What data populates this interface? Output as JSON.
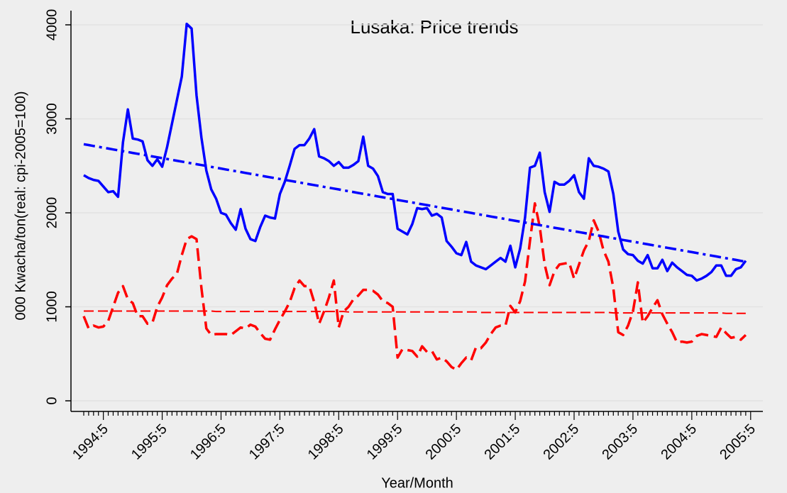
{
  "chart_data": {
    "type": "line",
    "title": "Lusaka: Price trends",
    "x_label": "Year/Month",
    "y_label": "000 Kwacha/ton(real: cpi-2005=100)",
    "categories": [
      null,
      null,
      null,
      null,
      "1994:5",
      null,
      null,
      null,
      null,
      null,
      null,
      null,
      null,
      null,
      null,
      null,
      "1995:5",
      null,
      null,
      null,
      null,
      null,
      null,
      null,
      null,
      null,
      null,
      null,
      "1996:5",
      null,
      null,
      null,
      null,
      null,
      null,
      null,
      null,
      null,
      null,
      null,
      "1997:5",
      null,
      null,
      null,
      null,
      null,
      null,
      null,
      null,
      null,
      null,
      null,
      "1998:5",
      null,
      null,
      null,
      null,
      null,
      null,
      null,
      null,
      null,
      null,
      null,
      "1999:5",
      null,
      null,
      null,
      null,
      null,
      null,
      null,
      null,
      null,
      null,
      null,
      "2000:5",
      null,
      null,
      null,
      null,
      null,
      null,
      null,
      null,
      null,
      null,
      null,
      "2001:5",
      null,
      null,
      null,
      null,
      null,
      null,
      null,
      null,
      null,
      null,
      null,
      "2002:5",
      null,
      null,
      null,
      null,
      null,
      null,
      null,
      null,
      null,
      null,
      null,
      "2003:5",
      null,
      null,
      null,
      null,
      null,
      null,
      null,
      null,
      null,
      null,
      null,
      "2004:5",
      null,
      null,
      null,
      null,
      null,
      null,
      null,
      null,
      null,
      null,
      null,
      "2005:5"
    ],
    "ylim": [
      -113,
      4151
    ],
    "yticks": [
      0,
      1000,
      2000,
      3000,
      4000
    ],
    "grid": true,
    "series": [
      {
        "color": "#0000ff",
        "style": "solid",
        "values": [
          2400,
          2370,
          2350,
          2340,
          2280,
          2220,
          2230,
          2170,
          2750,
          3100,
          2790,
          2780,
          2760,
          2560,
          2500,
          2570,
          2490,
          2700,
          2950,
          3200,
          3450,
          4010,
          3960,
          3250,
          2800,
          2450,
          2250,
          2150,
          2000,
          1980,
          1890,
          1820,
          2040,
          1830,
          1720,
          1700,
          1850,
          1970,
          1950,
          1940,
          2200,
          2330,
          2500,
          2680,
          2720,
          2720,
          2790,
          2890,
          2600,
          2580,
          2550,
          2500,
          2540,
          2480,
          2480,
          2510,
          2550,
          2810,
          2500,
          2470,
          2390,
          2220,
          2200,
          2200,
          1830,
          1800,
          1770,
          1880,
          2050,
          2040,
          2050,
          1970,
          1990,
          1950,
          1700,
          1640,
          1570,
          1550,
          1690,
          1480,
          1440,
          1420,
          1400,
          1440,
          1480,
          1520,
          1480,
          1650,
          1420,
          1620,
          1950,
          2480,
          2500,
          2640,
          2220,
          2010,
          2330,
          2300,
          2300,
          2340,
          2400,
          2220,
          2150,
          2580,
          2500,
          2490,
          2470,
          2440,
          2200,
          1800,
          1610,
          1560,
          1550,
          1490,
          1460,
          1550,
          1410,
          1410,
          1500,
          1380,
          1470,
          1420,
          1380,
          1340,
          1330,
          1280,
          1300,
          1330,
          1370,
          1440,
          1440,
          1330,
          1330,
          1400,
          1420,
          1490,
          null
        ]
      },
      {
        "color": "#ff0000",
        "style": "dashed",
        "values": [
          900,
          770,
          800,
          780,
          790,
          850,
          1000,
          1150,
          1220,
          1080,
          1040,
          900,
          900,
          820,
          830,
          1000,
          1100,
          1230,
          1300,
          1350,
          1550,
          1720,
          1750,
          1720,
          1200,
          770,
          700,
          710,
          710,
          710,
          700,
          740,
          780,
          770,
          810,
          790,
          720,
          660,
          650,
          760,
          860,
          950,
          1050,
          1200,
          1280,
          1220,
          1220,
          1050,
          820,
          950,
          1100,
          1280,
          780,
          950,
          1000,
          1080,
          1120,
          1180,
          1180,
          1170,
          1130,
          1060,
          1040,
          1000,
          460,
          550,
          540,
          530,
          470,
          580,
          520,
          530,
          440,
          460,
          420,
          360,
          330,
          400,
          460,
          430,
          570,
          560,
          620,
          710,
          780,
          800,
          800,
          1010,
          940,
          1060,
          1270,
          1700,
          2100,
          1850,
          1450,
          1230,
          1380,
          1450,
          1460,
          1470,
          1300,
          1450,
          1600,
          1700,
          1920,
          1800,
          1600,
          1480,
          1200,
          730,
          700,
          800,
          950,
          1260,
          830,
          900,
          990,
          1070,
          920,
          820,
          730,
          620,
          630,
          620,
          630,
          690,
          710,
          700,
          690,
          680,
          780,
          720,
          670,
          680,
          650,
          700,
          null
        ]
      },
      {
        "color": "#0000ff",
        "style": "dashdot",
        "values": [
          2730,
          2721,
          2711,
          2702,
          2693,
          2684,
          2674,
          2665,
          2656,
          2647,
          2637,
          2628,
          2619,
          2610,
          2600,
          2591,
          2582,
          2573,
          2563,
          2554,
          2545,
          2536,
          2526,
          2517,
          2508,
          2499,
          2489,
          2480,
          2471,
          2461,
          2452,
          2443,
          2434,
          2424,
          2415,
          2406,
          2397,
          2387,
          2378,
          2369,
          2360,
          2350,
          2341,
          2332,
          2323,
          2313,
          2304,
          2295,
          2286,
          2276,
          2267,
          2258,
          2249,
          2239,
          2230,
          2221,
          2211,
          2202,
          2193,
          2184,
          2174,
          2165,
          2156,
          2147,
          2137,
          2128,
          2119,
          2110,
          2100,
          2091,
          2082,
          2073,
          2063,
          2054,
          2045,
          2036,
          2026,
          2017,
          2008,
          1999,
          1989,
          1980,
          1971,
          1961,
          1952,
          1943,
          1934,
          1924,
          1915,
          1906,
          1897,
          1887,
          1878,
          1869,
          1860,
          1850,
          1841,
          1832,
          1823,
          1813,
          1804,
          1795,
          1786,
          1776,
          1767,
          1758,
          1749,
          1739,
          1730,
          1721,
          1711,
          1702,
          1693,
          1684,
          1674,
          1665,
          1656,
          1647,
          1637,
          1628,
          1619,
          1610,
          1600,
          1591,
          1582,
          1573,
          1563,
          1554,
          1545,
          1536,
          1526,
          1517,
          1508,
          1499,
          1489,
          1480,
          null
        ]
      },
      {
        "color": "#ff0000",
        "style": "thindashed",
        "values": [
          955,
          955,
          955,
          955,
          955,
          955,
          955,
          955,
          955,
          955,
          955,
          955,
          955,
          955,
          955,
          955,
          955,
          955,
          955,
          955,
          955,
          955,
          955,
          955,
          955,
          955,
          955,
          950,
          950,
          950,
          950,
          950,
          950,
          950,
          950,
          950,
          950,
          950,
          950,
          950,
          950,
          950,
          950,
          950,
          950,
          950,
          950,
          950,
          950,
          950,
          950,
          950,
          950,
          950,
          945,
          945,
          945,
          945,
          945,
          945,
          945,
          945,
          945,
          945,
          945,
          945,
          945,
          945,
          945,
          945,
          945,
          945,
          945,
          945,
          945,
          945,
          945,
          945,
          945,
          945,
          945,
          940,
          940,
          940,
          940,
          940,
          940,
          940,
          940,
          940,
          940,
          940,
          940,
          940,
          940,
          940,
          940,
          940,
          940,
          940,
          940,
          940,
          940,
          940,
          940,
          940,
          940,
          940,
          935,
          935,
          935,
          935,
          935,
          935,
          935,
          935,
          935,
          935,
          935,
          935,
          935,
          935,
          935,
          935,
          935,
          935,
          935,
          935,
          935,
          935,
          935,
          930,
          930,
          930,
          930,
          930,
          null
        ]
      }
    ]
  }
}
